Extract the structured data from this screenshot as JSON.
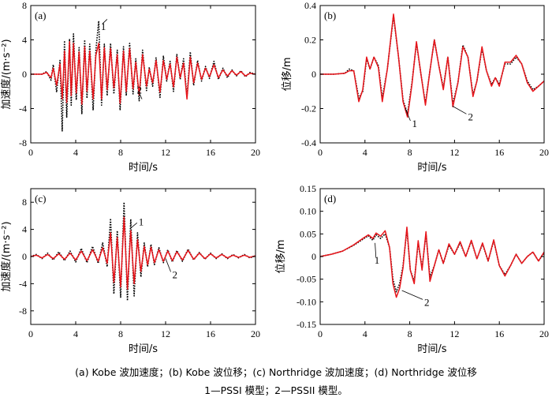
{
  "chart_data": [
    {
      "id": "a",
      "type": "line",
      "panel_label": "(a)",
      "xlabel": "时间/s",
      "ylabel": "加速度/(m·s⁻²)",
      "xlim": [
        0,
        20
      ],
      "ylim": [
        -8,
        8
      ],
      "xticks": [
        "0",
        "4",
        "8",
        "12",
        "16",
        "20"
      ],
      "yticks": [
        "-8",
        "-4",
        "0",
        "4",
        "8"
      ],
      "annotations": [
        {
          "text": "1",
          "x": 6.8,
          "y": 6.4,
          "tx": 6.1,
          "ty": 5.6
        },
        {
          "text": "2",
          "x": 9.9,
          "y": -2.9,
          "tx": 9.3,
          "ty": -1.8
        }
      ],
      "series": [
        {
          "style": "dotted",
          "color": "#000000",
          "x": [
            0,
            1,
            1.4,
            1.8,
            2.0,
            2.3,
            2.6,
            2.8,
            3.0,
            3.2,
            3.45,
            3.6,
            3.8,
            4.05,
            4.3,
            4.55,
            4.8,
            5.0,
            5.25,
            5.55,
            5.8,
            6.05,
            6.3,
            6.55,
            6.8,
            7.1,
            7.4,
            7.7,
            7.95,
            8.25,
            8.5,
            8.8,
            9.1,
            9.35,
            9.65,
            9.95,
            10.3,
            10.55,
            10.85,
            11.15,
            11.5,
            11.8,
            12.1,
            12.4,
            12.7,
            13.0,
            13.3,
            13.6,
            13.9,
            14.2,
            14.5,
            14.85,
            15.2,
            15.55,
            15.9,
            16.3,
            16.7,
            17.1,
            17.5,
            17.9,
            18.3,
            18.7,
            19.1,
            19.5,
            20
          ],
          "y": [
            0,
            0,
            0.3,
            -0.7,
            1.1,
            -2.1,
            1.6,
            -6.6,
            3.9,
            -5.0,
            4.1,
            -3.6,
            4.7,
            -3.0,
            3.1,
            -4.6,
            4.0,
            -2.8,
            3.5,
            -4.2,
            2.8,
            6.2,
            -3.6,
            3.5,
            -2.5,
            3.6,
            -2.3,
            2.8,
            -4.2,
            3.2,
            -2.5,
            3.6,
            -2.3,
            1.8,
            -3.1,
            2.8,
            -1.9,
            0.8,
            -1.4,
            1.9,
            -2.7,
            2.1,
            -0.8,
            1.5,
            -2.0,
            2.3,
            -0.6,
            1.8,
            -2.7,
            2.6,
            -1.3,
            1.6,
            -0.8,
            0.9,
            -0.5,
            1.5,
            -0.6,
            0.7,
            -0.4,
            0.5,
            -0.2,
            0.4,
            -0.3,
            0.2,
            0
          ]
        },
        {
          "style": "solid",
          "color": "#e8151b",
          "x": [
            0,
            1,
            1.4,
            1.8,
            2.0,
            2.3,
            2.6,
            2.8,
            3.0,
            3.2,
            3.45,
            3.6,
            3.8,
            4.05,
            4.3,
            4.55,
            4.8,
            5.0,
            5.25,
            5.55,
            5.8,
            6.05,
            6.3,
            6.55,
            6.8,
            7.1,
            7.4,
            7.7,
            7.95,
            8.25,
            8.5,
            8.8,
            9.1,
            9.35,
            9.65,
            9.95,
            10.3,
            10.55,
            10.85,
            11.15,
            11.5,
            11.8,
            12.1,
            12.4,
            12.7,
            13.0,
            13.3,
            13.6,
            13.9,
            14.2,
            14.5,
            14.85,
            15.2,
            15.55,
            15.9,
            16.3,
            16.7,
            17.1,
            17.5,
            17.9,
            18.3,
            18.7,
            19.1,
            19.5,
            20
          ],
          "y": [
            0,
            0,
            0.2,
            -0.4,
            0.7,
            -1.3,
            1.2,
            -2.9,
            2.7,
            -3.3,
            3.8,
            -2.5,
            3.6,
            -2.2,
            2.6,
            -3.5,
            3.2,
            -2.0,
            2.7,
            -2.9,
            2.2,
            3.6,
            -2.9,
            3.1,
            -1.8,
            3.0,
            -1.6,
            2.3,
            -3.4,
            2.7,
            -2.0,
            3.0,
            -1.7,
            1.4,
            -2.4,
            2.3,
            -1.4,
            0.6,
            -1.0,
            1.6,
            -2.1,
            1.6,
            -0.6,
            1.2,
            -1.5,
            2.0,
            -0.4,
            1.3,
            -2.9,
            2.0,
            -1.0,
            1.3,
            -0.6,
            0.7,
            -0.3,
            1.1,
            -0.4,
            0.5,
            -0.2,
            0.4,
            -0.1,
            0.3,
            -0.2,
            0.1,
            0
          ]
        }
      ]
    },
    {
      "id": "b",
      "type": "line",
      "panel_label": "(b)",
      "xlabel": "时间/s",
      "ylabel": "位移/m",
      "xlim": [
        0,
        20
      ],
      "ylim": [
        -0.4,
        0.4
      ],
      "xticks": [
        "0",
        "4",
        "8",
        "12",
        "16",
        "20"
      ],
      "yticks": [
        "-0.4",
        "-0.2",
        "0",
        "0.2",
        "0.4"
      ],
      "annotations": [
        {
          "text": "1",
          "x": 7.6,
          "y": -0.2,
          "tx": 8.2,
          "ty": -0.285
        },
        {
          "text": "2",
          "x": 11.8,
          "y": -0.185,
          "tx": 13.2,
          "ty": -0.245
        }
      ],
      "series": [
        {
          "style": "dotted",
          "color": "#000000",
          "x": [
            0,
            1.2,
            2.2,
            2.6,
            3.0,
            3.45,
            3.8,
            4.15,
            4.45,
            4.8,
            5.2,
            5.55,
            6.0,
            6.55,
            7.0,
            7.4,
            7.8,
            8.2,
            8.6,
            9.0,
            9.4,
            9.8,
            10.2,
            10.6,
            11.0,
            11.4,
            11.85,
            12.3,
            12.75,
            13.2,
            13.65,
            14.0,
            14.45,
            14.85,
            15.3,
            15.65,
            16.0,
            16.5,
            17.0,
            17.5,
            18.0,
            18.5,
            19.0,
            19.5,
            20
          ],
          "y": [
            0,
            0,
            0.005,
            0.03,
            0.02,
            -0.14,
            -0.1,
            0.09,
            0.03,
            0.1,
            0.05,
            -0.14,
            0.03,
            0.34,
            0.1,
            -0.15,
            -0.23,
            -0.05,
            0.18,
            0.0,
            -0.17,
            0.02,
            0.2,
            0.05,
            -0.08,
            0.1,
            -0.17,
            -0.05,
            0.17,
            0.1,
            -0.12,
            -0.04,
            0.15,
            0.02,
            -0.06,
            -0.02,
            -0.06,
            0.06,
            0.06,
            0.1,
            0.06,
            -0.04,
            -0.09,
            -0.07,
            -0.04
          ]
        },
        {
          "style": "solid",
          "color": "#e8151b",
          "x": [
            0,
            1.2,
            2.2,
            2.6,
            3.0,
            3.45,
            3.8,
            4.15,
            4.45,
            4.8,
            5.2,
            5.55,
            6.0,
            6.55,
            7.0,
            7.4,
            7.8,
            8.2,
            8.6,
            9.0,
            9.4,
            9.8,
            10.2,
            10.6,
            11.0,
            11.4,
            11.85,
            12.3,
            12.75,
            13.2,
            13.65,
            14.0,
            14.45,
            14.85,
            15.3,
            15.65,
            16.0,
            16.5,
            17.0,
            17.5,
            18.0,
            18.5,
            19.0,
            19.5,
            20
          ],
          "y": [
            0,
            0,
            0.005,
            0.02,
            0.02,
            -0.16,
            -0.09,
            0.1,
            0.03,
            0.1,
            0.04,
            -0.16,
            0.03,
            0.35,
            0.1,
            -0.16,
            -0.25,
            -0.06,
            0.19,
            0.0,
            -0.18,
            0.02,
            0.2,
            0.05,
            -0.09,
            0.1,
            -0.19,
            -0.05,
            0.16,
            0.1,
            -0.13,
            -0.04,
            0.16,
            0.02,
            -0.07,
            -0.02,
            -0.07,
            0.07,
            0.07,
            0.11,
            0.06,
            -0.05,
            -0.1,
            -0.07,
            -0.04
          ]
        }
      ]
    },
    {
      "id": "c",
      "type": "line",
      "panel_label": "(c)",
      "xlabel": "时间/s",
      "ylabel": "加速度/(m·s⁻²)",
      "xlim": [
        0,
        20
      ],
      "ylim": [
        -10,
        10
      ],
      "xticks": [
        "0",
        "4",
        "8",
        "12",
        "16",
        "20"
      ],
      "yticks": [
        "-8",
        "-4",
        "0",
        "4",
        "8"
      ],
      "annotations": [
        {
          "text": "1",
          "x": 8.9,
          "y": 4.2,
          "tx": 9.6,
          "ty": 5.2
        },
        {
          "text": "2",
          "x": 12.0,
          "y": -0.3,
          "tx": 12.6,
          "ty": -2.6
        }
      ],
      "series": [
        {
          "style": "dotted",
          "color": "#000000",
          "x": [
            0,
            0.5,
            1.0,
            1.5,
            2.0,
            2.5,
            3.0,
            3.5,
            4.0,
            4.5,
            5.0,
            5.5,
            6.0,
            6.4,
            6.8,
            7.1,
            7.4,
            7.7,
            8.0,
            8.3,
            8.6,
            8.9,
            9.2,
            9.5,
            9.8,
            10.1,
            10.4,
            10.7,
            11.0,
            11.4,
            11.8,
            12.2,
            12.6,
            13.0,
            13.5,
            14.0,
            14.5,
            15.0,
            15.5,
            16.0,
            16.5,
            17.0,
            17.5,
            18.0,
            18.5,
            19.0,
            19.5,
            20
          ],
          "y": [
            0,
            0.3,
            -0.3,
            0.5,
            -0.5,
            0.7,
            -0.6,
            0.8,
            -0.8,
            1.2,
            -0.9,
            1.5,
            -1.0,
            2.0,
            -1.5,
            5.6,
            -5.5,
            3.8,
            -6.0,
            8.0,
            -6.5,
            5.5,
            -5.8,
            3.5,
            -3.0,
            2.0,
            -1.5,
            1.8,
            -1.2,
            1.3,
            -0.9,
            1.0,
            -0.8,
            0.9,
            -0.7,
            1.1,
            -0.5,
            0.6,
            -0.4,
            0.5,
            -0.3,
            0.4,
            -0.3,
            0.3,
            -0.2,
            0.3,
            -0.2,
            0.1
          ]
        },
        {
          "style": "solid",
          "color": "#e8151b",
          "x": [
            0,
            0.5,
            1.0,
            1.5,
            2.0,
            2.5,
            3.0,
            3.5,
            4.0,
            4.5,
            5.0,
            5.5,
            6.0,
            6.4,
            6.8,
            7.1,
            7.4,
            7.7,
            8.0,
            8.3,
            8.6,
            8.9,
            9.2,
            9.5,
            9.8,
            10.1,
            10.4,
            10.7,
            11.0,
            11.4,
            11.8,
            12.2,
            12.6,
            13.0,
            13.5,
            14.0,
            14.5,
            15.0,
            15.5,
            16.0,
            16.5,
            17.0,
            17.5,
            18.0,
            18.5,
            19.0,
            19.5,
            20
          ],
          "y": [
            0,
            0.2,
            -0.2,
            0.3,
            -0.3,
            0.4,
            -0.4,
            0.5,
            -0.5,
            0.8,
            -0.6,
            1.0,
            -0.7,
            1.3,
            -1.0,
            3.5,
            -3.8,
            2.8,
            -4.5,
            5.8,
            -4.8,
            3.8,
            -4.0,
            2.5,
            -2.2,
            1.5,
            -1.2,
            1.4,
            -0.9,
            1.0,
            -0.7,
            0.8,
            -0.6,
            0.7,
            -0.5,
            0.9,
            -0.4,
            0.5,
            -0.3,
            0.4,
            -0.2,
            0.3,
            -0.2,
            0.2,
            -0.1,
            0.2,
            -0.1,
            0.1
          ]
        }
      ]
    },
    {
      "id": "d",
      "type": "line",
      "panel_label": "(d)",
      "xlabel": "时间/s",
      "ylabel": "位移/m",
      "xlim": [
        0,
        20
      ],
      "ylim": [
        -0.15,
        0.15
      ],
      "xticks": [
        "0",
        "4",
        "8",
        "12",
        "16",
        "20"
      ],
      "yticks": [
        "-0.15",
        "-0.10",
        "-0.05",
        "0",
        "0.05",
        "0.10",
        "0.15"
      ],
      "annotations": [
        {
          "text": "1",
          "x": 4.9,
          "y": 0.03,
          "tx": 4.7,
          "ty": -0.007
        },
        {
          "text": "2",
          "x": 7.3,
          "y": -0.075,
          "tx": 9.3,
          "ty": -0.1
        }
      ],
      "series": [
        {
          "style": "dotted",
          "color": "#000000",
          "x": [
            0,
            1.0,
            2.0,
            3.0,
            3.8,
            4.3,
            4.7,
            5.0,
            5.4,
            5.8,
            6.2,
            6.5,
            6.8,
            7.1,
            7.4,
            7.75,
            8.05,
            8.4,
            8.75,
            9.1,
            9.45,
            9.8,
            10.2,
            10.6,
            11.0,
            11.5,
            12.0,
            12.5,
            13.0,
            13.5,
            14.0,
            14.5,
            15.0,
            15.5,
            16.0,
            16.5,
            17.0,
            17.5,
            18.0,
            18.5,
            19.0,
            19.5,
            20
          ],
          "y": [
            0,
            0.005,
            0.012,
            0.025,
            0.038,
            0.046,
            0.036,
            0.048,
            0.04,
            0.05,
            0.02,
            -0.05,
            -0.078,
            -0.06,
            -0.02,
            0.06,
            -0.03,
            -0.055,
            0.03,
            -0.025,
            0.05,
            -0.045,
            -0.02,
            0.015,
            -0.015,
            0.025,
            0.005,
            0.03,
            0.0,
            0.034,
            -0.005,
            0.028,
            -0.01,
            0.035,
            -0.02,
            -0.04,
            -0.02,
            0.005,
            -0.015,
            0.0,
            0.01,
            -0.01,
            0.008
          ]
        },
        {
          "style": "solid",
          "color": "#e8151b",
          "x": [
            0,
            1.0,
            2.0,
            3.0,
            3.8,
            4.3,
            4.7,
            5.0,
            5.4,
            5.8,
            6.2,
            6.5,
            6.8,
            7.1,
            7.4,
            7.75,
            8.05,
            8.4,
            8.75,
            9.1,
            9.45,
            9.8,
            10.2,
            10.6,
            11.0,
            11.5,
            12.0,
            12.5,
            13.0,
            13.5,
            14.0,
            14.5,
            15.0,
            15.5,
            16.0,
            16.5,
            17.0,
            17.5,
            18.0,
            18.5,
            19.0,
            19.5,
            20
          ],
          "y": [
            0,
            0.005,
            0.012,
            0.026,
            0.04,
            0.048,
            0.04,
            0.052,
            0.045,
            0.057,
            0.02,
            -0.06,
            -0.09,
            -0.07,
            -0.025,
            0.065,
            -0.03,
            -0.06,
            0.035,
            -0.03,
            0.055,
            -0.055,
            -0.02,
            0.015,
            -0.015,
            0.028,
            0.005,
            0.033,
            0.0,
            0.036,
            -0.005,
            0.03,
            -0.01,
            0.037,
            -0.02,
            -0.043,
            -0.02,
            0.005,
            -0.015,
            0.0,
            0.01,
            -0.01,
            0.01
          ]
        }
      ]
    }
  ],
  "caption": {
    "line1": "(a) Kobe 波加速度；(b) Kobe 波位移；(c) Northridge 波加速度；(d) Northridge 波位移",
    "line2": "1—PSSI 模型；2—PSSII 模型。"
  }
}
